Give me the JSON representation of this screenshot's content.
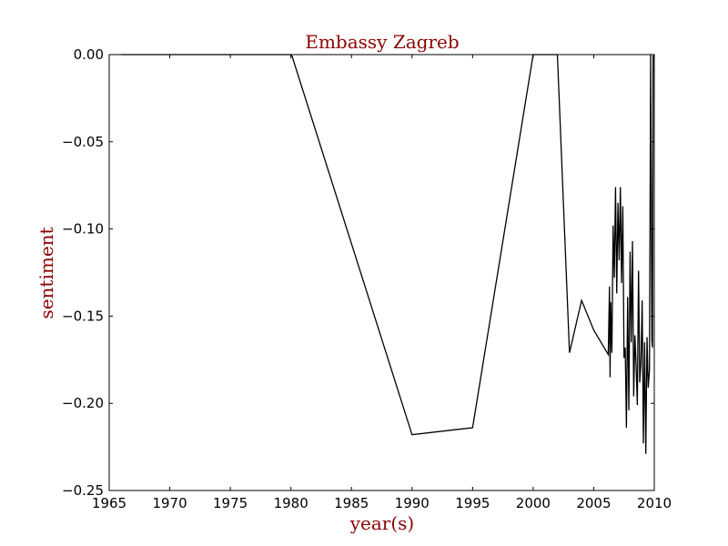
{
  "chart_data": {
    "type": "line",
    "title": "Embassy Zagreb",
    "xlabel": "year(s)",
    "ylabel": "sentiment",
    "xlim": [
      1965,
      2010
    ],
    "ylim": [
      -0.25,
      0.0
    ],
    "grid": false,
    "x_ticks": [
      1965,
      1970,
      1975,
      1980,
      1985,
      1990,
      1995,
      2000,
      2005,
      2010
    ],
    "y_ticks": [
      0.0,
      -0.05,
      -0.1,
      -0.15,
      -0.2,
      -0.25
    ],
    "x_tick_labels": [
      "1965",
      "1970",
      "1975",
      "1980",
      "1985",
      "1990",
      "1995",
      "2000",
      "2005",
      "2010"
    ],
    "y_tick_labels": [
      "0.00",
      "−0.05",
      "−0.10",
      "−0.15",
      "−0.20",
      "−0.25"
    ],
    "colors": {
      "line": "#000000",
      "title": "#8b0000",
      "axes": "#000000"
    },
    "series": [
      {
        "x": [
          1966.0,
          1980.0,
          1980.1,
          1990.0,
          1995.0,
          2000.0,
          2002.0,
          2003.0,
          2004.0,
          2005.0,
          2006.2,
          2006.3,
          2006.35,
          2006.4,
          2006.5,
          2006.6,
          2006.7,
          2006.8,
          2006.9,
          2007.0,
          2007.1,
          2007.2,
          2007.3,
          2007.4,
          2007.5,
          2007.6,
          2007.7,
          2007.8,
          2007.9,
          2008.0,
          2008.1,
          2008.2,
          2008.3,
          2008.4,
          2008.5,
          2008.6,
          2008.7,
          2008.8,
          2008.9,
          2009.0,
          2009.1,
          2009.2,
          2009.3,
          2009.4,
          2009.5,
          2009.6,
          2009.7,
          2009.8,
          2009.85,
          2009.9,
          2010.0
        ],
        "y": [
          0.0,
          0.0,
          -0.001,
          -0.218,
          -0.214,
          0.0,
          0.0,
          -0.171,
          -0.141,
          -0.158,
          -0.172,
          -0.133,
          -0.185,
          -0.142,
          -0.171,
          -0.098,
          -0.128,
          -0.076,
          -0.137,
          -0.085,
          -0.118,
          -0.076,
          -0.131,
          -0.087,
          -0.174,
          -0.168,
          -0.214,
          -0.139,
          -0.204,
          -0.113,
          -0.165,
          -0.107,
          -0.196,
          -0.161,
          -0.178,
          -0.201,
          -0.124,
          -0.188,
          -0.176,
          -0.141,
          -0.223,
          -0.165,
          -0.229,
          -0.162,
          -0.191,
          -0.181,
          -0.0,
          -0.164,
          -0.168,
          -0.001,
          0.0
        ]
      }
    ]
  }
}
